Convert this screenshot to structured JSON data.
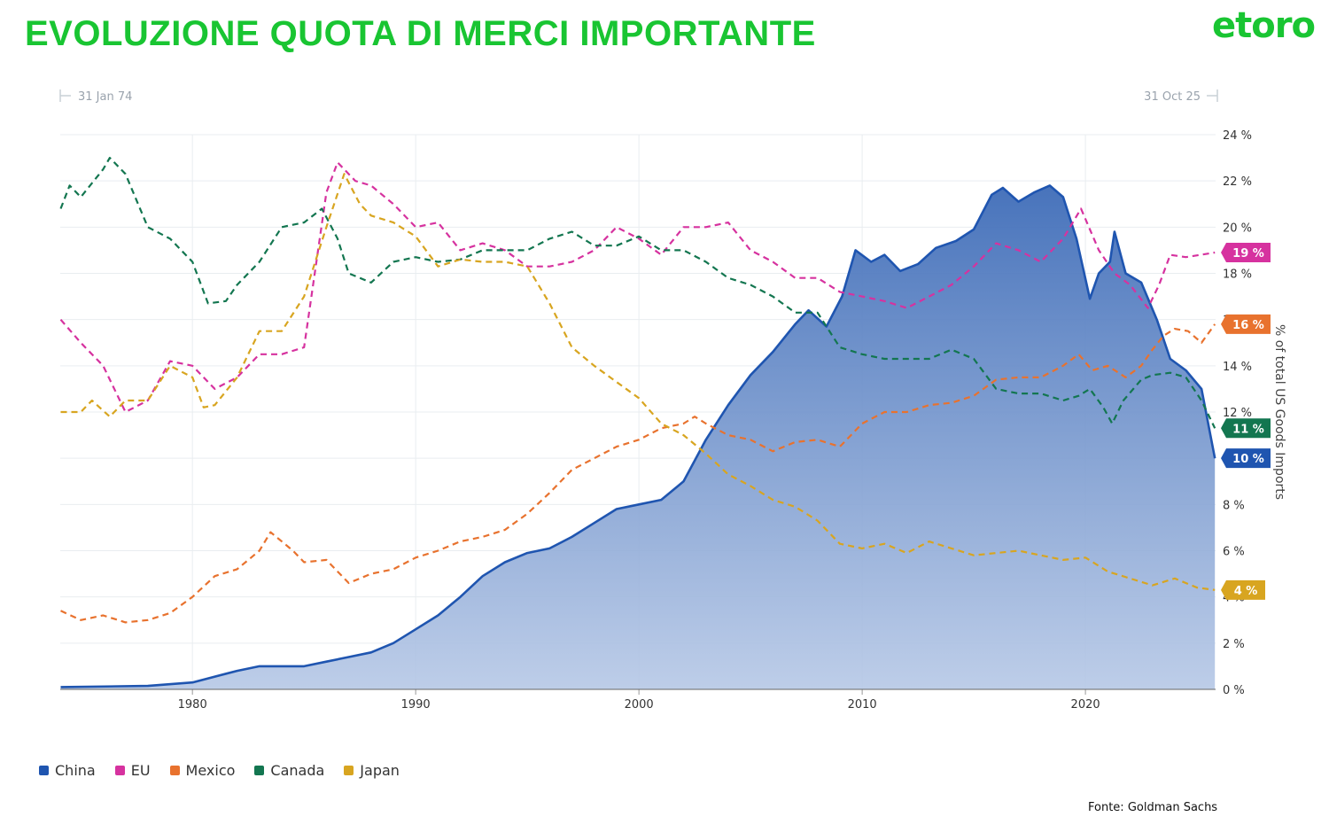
{
  "header": {
    "title": "EVOLUZIONE QUOTA DI MERCI IMPORTANTE",
    "logo_text": "etoro"
  },
  "footer": {
    "source": "Fonte: Goldman Sachs"
  },
  "colors": {
    "title": "#19c532",
    "China": "#1f55b0",
    "EU": "#d6329f",
    "Mexico": "#e8722e",
    "Canada": "#137650",
    "Japan": "#d8a520"
  },
  "chart_data": {
    "type": "line",
    "range_start": "31 Jan 74",
    "range_end": "31 Oct 25",
    "xlabel": "",
    "ylabel": "% of total US Goods Imports",
    "xlim": [
      1974.08,
      2025.83
    ],
    "ylim": [
      0,
      24
    ],
    "x_ticks": [
      1980,
      1990,
      2000,
      2010,
      2020
    ],
    "y_ticks": [
      "0 %",
      "2 %",
      "4 %",
      "6 %",
      "8 %",
      "10 %",
      "12 %",
      "14 %",
      "16 %",
      "18 %",
      "20 %",
      "22 %",
      "24 %"
    ],
    "y_tick_values": [
      0,
      2,
      4,
      6,
      8,
      10,
      12,
      14,
      16,
      18,
      20,
      22,
      24
    ],
    "grid": true,
    "legend_position": "bottom-left",
    "series": [
      {
        "name": "China",
        "style": "area",
        "last_label": "10 %",
        "points": [
          [
            1974.1,
            0.1
          ],
          [
            1978,
            0.15
          ],
          [
            1980,
            0.3
          ],
          [
            1982,
            0.8
          ],
          [
            1983,
            1.0
          ],
          [
            1985,
            1.0
          ],
          [
            1986,
            1.2
          ],
          [
            1987,
            1.4
          ],
          [
            1988,
            1.6
          ],
          [
            1989,
            2.0
          ],
          [
            1990,
            2.6
          ],
          [
            1991,
            3.2
          ],
          [
            1992,
            4.0
          ],
          [
            1993,
            4.9
          ],
          [
            1994,
            5.5
          ],
          [
            1995,
            5.9
          ],
          [
            1996,
            6.1
          ],
          [
            1997,
            6.6
          ],
          [
            1998,
            7.2
          ],
          [
            1999,
            7.8
          ],
          [
            2000,
            8.0
          ],
          [
            2001,
            8.2
          ],
          [
            2002,
            9.0
          ],
          [
            2003,
            10.8
          ],
          [
            2004,
            12.3
          ],
          [
            2005,
            13.6
          ],
          [
            2006,
            14.6
          ],
          [
            2007,
            15.8
          ],
          [
            2007.6,
            16.4
          ],
          [
            2008.4,
            15.7
          ],
          [
            2009.1,
            17.0
          ],
          [
            2009.7,
            19.0
          ],
          [
            2010.4,
            18.5
          ],
          [
            2011,
            18.8
          ],
          [
            2011.7,
            18.1
          ],
          [
            2012.5,
            18.4
          ],
          [
            2013.3,
            19.1
          ],
          [
            2014.2,
            19.4
          ],
          [
            2015,
            19.9
          ],
          [
            2015.8,
            21.4
          ],
          [
            2016.3,
            21.7
          ],
          [
            2017,
            21.1
          ],
          [
            2017.7,
            21.5
          ],
          [
            2018.4,
            21.8
          ],
          [
            2019,
            21.3
          ],
          [
            2019.6,
            19.5
          ],
          [
            2020.2,
            16.9
          ],
          [
            2020.6,
            18.0
          ],
          [
            2021.1,
            18.5
          ],
          [
            2021.3,
            19.8
          ],
          [
            2021.8,
            18.0
          ],
          [
            2022.5,
            17.6
          ],
          [
            2023.2,
            16.0
          ],
          [
            2023.8,
            14.3
          ],
          [
            2024.5,
            13.8
          ],
          [
            2025.2,
            13.0
          ],
          [
            2025.8,
            10.0
          ]
        ]
      },
      {
        "name": "EU",
        "style": "dashed",
        "last_label": "19 %",
        "points": [
          [
            1974.1,
            16.0
          ],
          [
            1975,
            15.0
          ],
          [
            1976,
            14.0
          ],
          [
            1977,
            12.0
          ],
          [
            1978,
            12.5
          ],
          [
            1979,
            14.2
          ],
          [
            1980,
            14.0
          ],
          [
            1981,
            13.0
          ],
          [
            1982,
            13.5
          ],
          [
            1983,
            14.5
          ],
          [
            1984,
            14.5
          ],
          [
            1985,
            14.8
          ],
          [
            1986,
            21.5
          ],
          [
            1986.5,
            22.8
          ],
          [
            1987.3,
            22.0
          ],
          [
            1988,
            21.8
          ],
          [
            1989,
            21.0
          ],
          [
            1990,
            20.0
          ],
          [
            1991,
            20.2
          ],
          [
            1992,
            19.0
          ],
          [
            1993,
            19.3
          ],
          [
            1994,
            19.0
          ],
          [
            1995,
            18.3
          ],
          [
            1996,
            18.3
          ],
          [
            1997,
            18.5
          ],
          [
            1998,
            19.0
          ],
          [
            1999,
            20.0
          ],
          [
            2000,
            19.5
          ],
          [
            2001,
            18.8
          ],
          [
            2002,
            20.0
          ],
          [
            2003,
            20.0
          ],
          [
            2004,
            20.2
          ],
          [
            2005,
            19.0
          ],
          [
            2006,
            18.5
          ],
          [
            2007,
            17.8
          ],
          [
            2008,
            17.8
          ],
          [
            2009,
            17.2
          ],
          [
            2010,
            17.0
          ],
          [
            2011,
            16.8
          ],
          [
            2012,
            16.5
          ],
          [
            2013,
            17.0
          ],
          [
            2014,
            17.5
          ],
          [
            2015,
            18.3
          ],
          [
            2016,
            19.3
          ],
          [
            2017,
            19.0
          ],
          [
            2018,
            18.5
          ],
          [
            2019,
            19.5
          ],
          [
            2019.8,
            20.8
          ],
          [
            2020.6,
            19.0
          ],
          [
            2021.3,
            18.0
          ],
          [
            2022,
            17.5
          ],
          [
            2022.8,
            16.5
          ],
          [
            2023.3,
            17.5
          ],
          [
            2023.8,
            18.8
          ],
          [
            2024.5,
            18.7
          ],
          [
            2025.8,
            18.9
          ]
        ]
      },
      {
        "name": "Mexico",
        "style": "dashed",
        "last_label": "16 %",
        "points": [
          [
            1974.1,
            3.4
          ],
          [
            1975,
            3.0
          ],
          [
            1976,
            3.2
          ],
          [
            1977,
            2.9
          ],
          [
            1978,
            3.0
          ],
          [
            1979,
            3.3
          ],
          [
            1980,
            4.0
          ],
          [
            1981,
            4.9
          ],
          [
            1982,
            5.2
          ],
          [
            1983,
            6.0
          ],
          [
            1983.5,
            6.8
          ],
          [
            1984.5,
            6.0
          ],
          [
            1985,
            5.5
          ],
          [
            1986,
            5.6
          ],
          [
            1987,
            4.6
          ],
          [
            1988,
            5.0
          ],
          [
            1989,
            5.2
          ],
          [
            1990,
            5.7
          ],
          [
            1991,
            6.0
          ],
          [
            1992,
            6.4
          ],
          [
            1993,
            6.6
          ],
          [
            1994,
            6.9
          ],
          [
            1995,
            7.6
          ],
          [
            1996,
            8.5
          ],
          [
            1997,
            9.5
          ],
          [
            1998,
            10.0
          ],
          [
            1999,
            10.5
          ],
          [
            2000,
            10.8
          ],
          [
            2001,
            11.3
          ],
          [
            2002,
            11.5
          ],
          [
            2002.5,
            11.8
          ],
          [
            2003,
            11.5
          ],
          [
            2004,
            11.0
          ],
          [
            2005,
            10.8
          ],
          [
            2006,
            10.3
          ],
          [
            2007,
            10.7
          ],
          [
            2008,
            10.8
          ],
          [
            2009,
            10.5
          ],
          [
            2010,
            11.5
          ],
          [
            2011,
            12.0
          ],
          [
            2012,
            12.0
          ],
          [
            2013,
            12.3
          ],
          [
            2014,
            12.4
          ],
          [
            2015,
            12.7
          ],
          [
            2016,
            13.4
          ],
          [
            2017,
            13.5
          ],
          [
            2018,
            13.5
          ],
          [
            2019,
            14.0
          ],
          [
            2019.7,
            14.5
          ],
          [
            2020.3,
            13.8
          ],
          [
            2021,
            14.0
          ],
          [
            2021.8,
            13.5
          ],
          [
            2022.5,
            14.0
          ],
          [
            2023,
            14.7
          ],
          [
            2023.5,
            15.3
          ],
          [
            2024,
            15.6
          ],
          [
            2024.6,
            15.5
          ],
          [
            2025.2,
            15.0
          ],
          [
            2025.8,
            15.8
          ]
        ]
      },
      {
        "name": "Canada",
        "style": "dashed",
        "last_label": "11 %",
        "points": [
          [
            1974.1,
            20.8
          ],
          [
            1974.5,
            21.8
          ],
          [
            1975,
            21.3
          ],
          [
            1976,
            22.5
          ],
          [
            1976.3,
            23.0
          ],
          [
            1977,
            22.3
          ],
          [
            1978,
            20.0
          ],
          [
            1979,
            19.5
          ],
          [
            1980,
            18.5
          ],
          [
            1980.7,
            16.7
          ],
          [
            1981.5,
            16.8
          ],
          [
            1982,
            17.5
          ],
          [
            1983,
            18.5
          ],
          [
            1984,
            20.0
          ],
          [
            1985,
            20.2
          ],
          [
            1985.8,
            20.8
          ],
          [
            1986.5,
            19.5
          ],
          [
            1987,
            18.0
          ],
          [
            1988,
            17.6
          ],
          [
            1989,
            18.5
          ],
          [
            1990,
            18.7
          ],
          [
            1991,
            18.5
          ],
          [
            1992,
            18.6
          ],
          [
            1993,
            19.0
          ],
          [
            1994,
            19.0
          ],
          [
            1995,
            19.0
          ],
          [
            1996,
            19.5
          ],
          [
            1997,
            19.8
          ],
          [
            1998,
            19.2
          ],
          [
            1999,
            19.2
          ],
          [
            2000,
            19.6
          ],
          [
            2001,
            19.0
          ],
          [
            2002,
            19.0
          ],
          [
            2003,
            18.5
          ],
          [
            2004,
            17.8
          ],
          [
            2005,
            17.5
          ],
          [
            2006,
            17.0
          ],
          [
            2007,
            16.3
          ],
          [
            2008,
            16.3
          ],
          [
            2009,
            14.8
          ],
          [
            2010,
            14.5
          ],
          [
            2011,
            14.3
          ],
          [
            2012,
            14.3
          ],
          [
            2013,
            14.3
          ],
          [
            2014,
            14.7
          ],
          [
            2015,
            14.3
          ],
          [
            2016,
            13.0
          ],
          [
            2017,
            12.8
          ],
          [
            2018,
            12.8
          ],
          [
            2019,
            12.5
          ],
          [
            2019.7,
            12.7
          ],
          [
            2020.2,
            13.0
          ],
          [
            2020.8,
            12.2
          ],
          [
            2021.2,
            11.5
          ],
          [
            2021.7,
            12.5
          ],
          [
            2022.5,
            13.4
          ],
          [
            2023,
            13.6
          ],
          [
            2023.8,
            13.7
          ],
          [
            2024.5,
            13.5
          ],
          [
            2025.2,
            12.5
          ],
          [
            2025.8,
            11.3
          ]
        ]
      },
      {
        "name": "Japan",
        "style": "dashed",
        "last_label": "4 %",
        "points": [
          [
            1974.1,
            12.0
          ],
          [
            1975,
            12.0
          ],
          [
            1975.5,
            12.5
          ],
          [
            1976.3,
            11.8
          ],
          [
            1977,
            12.5
          ],
          [
            1978,
            12.5
          ],
          [
            1979,
            14.0
          ],
          [
            1980,
            13.5
          ],
          [
            1980.5,
            12.2
          ],
          [
            1981,
            12.3
          ],
          [
            1982,
            13.5
          ],
          [
            1983,
            15.5
          ],
          [
            1984,
            15.5
          ],
          [
            1985,
            17.0
          ],
          [
            1986,
            20.0
          ],
          [
            1986.8,
            22.3
          ],
          [
            1987.5,
            21.0
          ],
          [
            1988,
            20.5
          ],
          [
            1989,
            20.2
          ],
          [
            1990,
            19.6
          ],
          [
            1991,
            18.3
          ],
          [
            1992,
            18.6
          ],
          [
            1993,
            18.5
          ],
          [
            1994,
            18.5
          ],
          [
            1995,
            18.3
          ],
          [
            1996,
            16.7
          ],
          [
            1997,
            14.8
          ],
          [
            1998,
            14.0
          ],
          [
            1999,
            13.3
          ],
          [
            2000,
            12.6
          ],
          [
            2001,
            11.5
          ],
          [
            2002,
            11.0
          ],
          [
            2003,
            10.2
          ],
          [
            2004,
            9.3
          ],
          [
            2005,
            8.8
          ],
          [
            2006,
            8.2
          ],
          [
            2007,
            7.9
          ],
          [
            2008,
            7.3
          ],
          [
            2009,
            6.3
          ],
          [
            2010,
            6.1
          ],
          [
            2011,
            6.3
          ],
          [
            2012,
            5.9
          ],
          [
            2013,
            6.4
          ],
          [
            2014,
            6.1
          ],
          [
            2015,
            5.8
          ],
          [
            2016,
            5.9
          ],
          [
            2017,
            6.0
          ],
          [
            2018,
            5.8
          ],
          [
            2019,
            5.6
          ],
          [
            2020,
            5.7
          ],
          [
            2021,
            5.1
          ],
          [
            2022,
            4.8
          ],
          [
            2023,
            4.5
          ],
          [
            2024,
            4.8
          ],
          [
            2025,
            4.4
          ],
          [
            2025.8,
            4.3
          ]
        ]
      }
    ]
  }
}
